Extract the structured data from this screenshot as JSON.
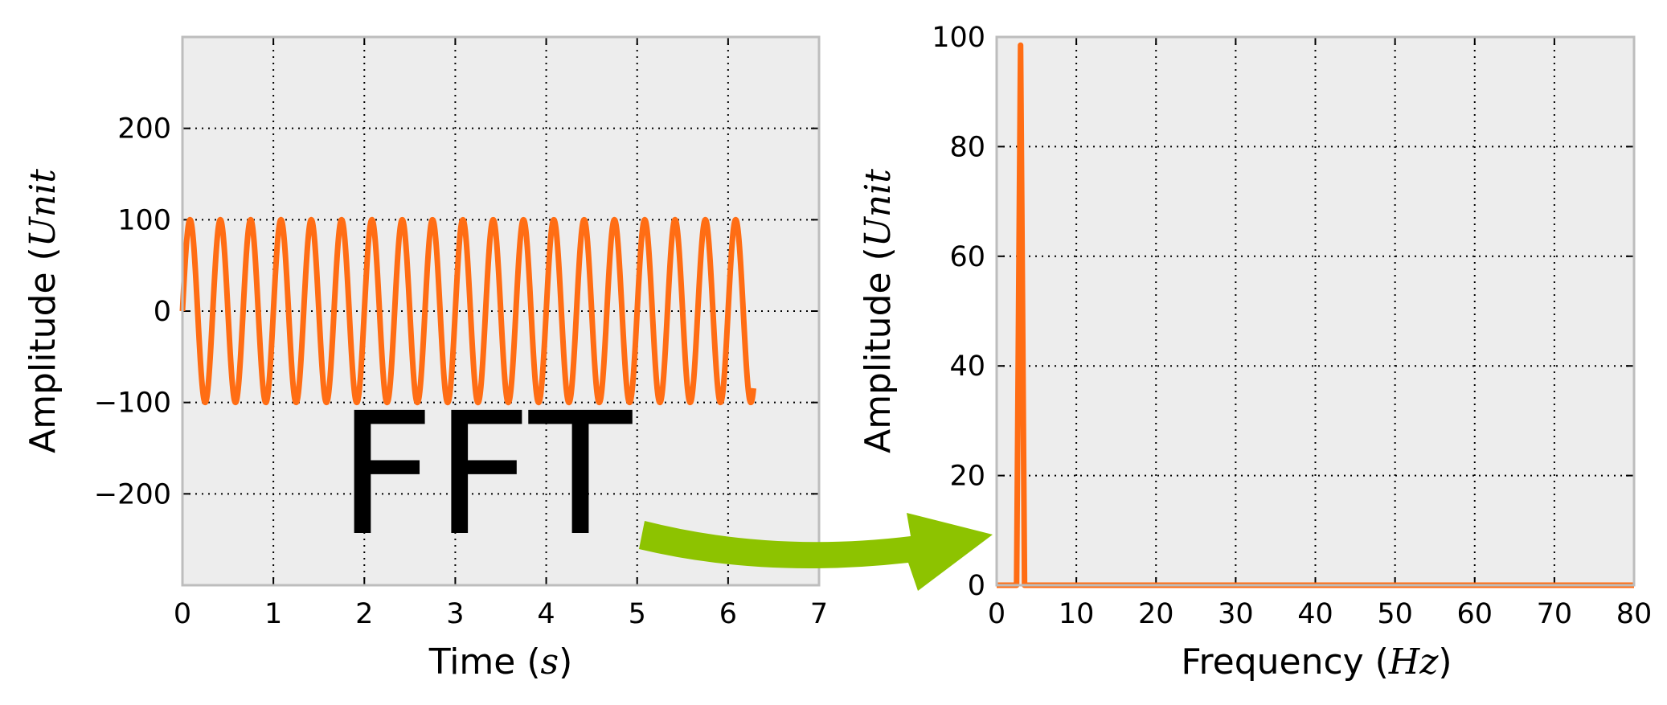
{
  "chart_data": [
    {
      "type": "line",
      "xlabel": "Time (s)",
      "xlabel_parts": {
        "text": "Time (",
        "math": "s",
        "close": ")"
      },
      "ylabel": "Amplitude (Unit)",
      "ylabel_parts": {
        "text": "Amplitude (",
        "math": "Unit"
      },
      "xlim": [
        0,
        7
      ],
      "ylim": [
        -300,
        300
      ],
      "xticks": [
        "0",
        "1",
        "2",
        "3",
        "4",
        "5",
        "6",
        "7"
      ],
      "yticks": [
        {
          "value": 200,
          "label": "200"
        },
        {
          "value": 100,
          "label": "100"
        },
        {
          "value": 0,
          "label": "0"
        },
        {
          "value": -100,
          "label": "−100"
        },
        {
          "value": -200,
          "label": "−200"
        }
      ],
      "grid": true,
      "series": [
        {
          "amplitude": 100,
          "frequency_hz": 3,
          "t_start": 0,
          "t_end": 6.28,
          "color": "#ff6d14"
        }
      ]
    },
    {
      "type": "line",
      "xlabel": "Frequency (Hz)",
      "xlabel_parts": {
        "text": "Frequency (",
        "math": "Hz",
        "close": ")"
      },
      "ylabel": "Amplitude (Unit)",
      "ylabel_parts": {
        "text": "Amplitude (",
        "math": "Unit"
      },
      "xlim": [
        0,
        80
      ],
      "ylim": [
        0,
        100
      ],
      "xticks": [
        "0",
        "10",
        "20",
        "30",
        "40",
        "50",
        "60",
        "70",
        "80"
      ],
      "yticks": [
        {
          "value": 0,
          "label": "0"
        },
        {
          "value": 20,
          "label": "20"
        },
        {
          "value": 40,
          "label": "40"
        },
        {
          "value": 60,
          "label": "60"
        },
        {
          "value": 80,
          "label": "80"
        },
        {
          "value": 100,
          "label": "100"
        }
      ],
      "grid": true,
      "series": [
        {
          "color": "#ff6d14",
          "x": [
            0,
            2.5,
            2.8,
            3.0,
            3.2,
            3.5,
            80
          ],
          "y": [
            0,
            0,
            60,
            98.5,
            60,
            0,
            0
          ]
        }
      ]
    }
  ],
  "annotation": {
    "text": "FFT",
    "arrow_color": "#8dc300"
  }
}
